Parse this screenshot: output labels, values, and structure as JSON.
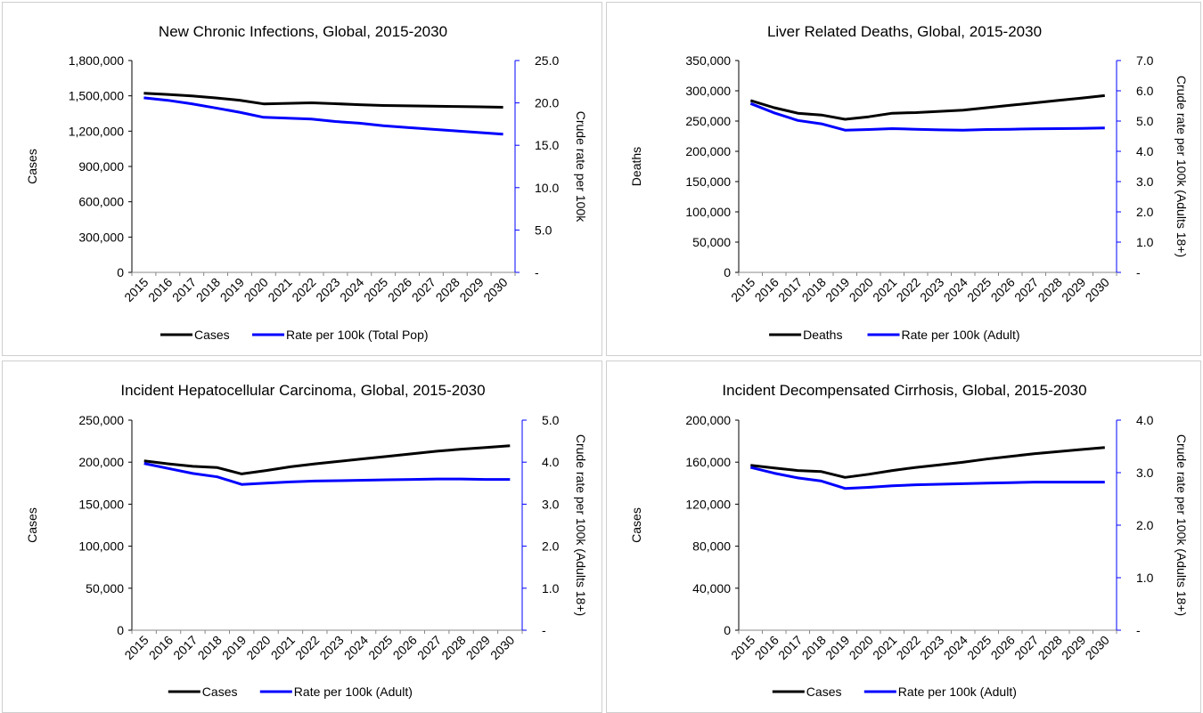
{
  "chart_data": [
    {
      "type": "line",
      "title": "New Chronic Infections, Global, 2015-2030",
      "ylabel": "Cases",
      "y2label": "Crude rate per 100k",
      "ylim": [
        0,
        1800000
      ],
      "y2lim": [
        0,
        25
      ],
      "yticks": [
        "0",
        "300,000",
        "600,000",
        "900,000",
        "1,200,000",
        "1,500,000",
        "1,800,000"
      ],
      "y2ticks": [
        "-",
        "5.0",
        "10.0",
        "15.0",
        "20.0",
        "25.0"
      ],
      "categories": [
        "2015",
        "2016",
        "2017",
        "2018",
        "2019",
        "2020",
        "2021",
        "2022",
        "2023",
        "2024",
        "2025",
        "2026",
        "2027",
        "2028",
        "2029",
        "2030"
      ],
      "series": [
        {
          "name": "Cases",
          "axis": "left",
          "color": "#000000",
          "values": [
            1522000,
            1512000,
            1500000,
            1482000,
            1463000,
            1432000,
            1436000,
            1441000,
            1433000,
            1425000,
            1418000,
            1415000,
            1412000,
            1410000,
            1407000,
            1403000
          ]
        },
        {
          "name": "Rate per 100k (Total Pop)",
          "axis": "right",
          "color": "#0000FF",
          "values": [
            20.6,
            20.3,
            19.9,
            19.4,
            18.9,
            18.3,
            18.2,
            18.1,
            17.8,
            17.6,
            17.3,
            17.1,
            16.9,
            16.7,
            16.5,
            16.3
          ]
        }
      ],
      "legend": "bottom"
    },
    {
      "type": "line",
      "title": "Liver Related Deaths, Global, 2015-2030",
      "ylabel": "Deaths",
      "y2label": "Crude rate per 100k (Adults 18+)",
      "ylim": [
        0,
        350000
      ],
      "y2lim": [
        0,
        7
      ],
      "yticks": [
        "0",
        "50,000",
        "100,000",
        "150,000",
        "200,000",
        "250,000",
        "300,000",
        "350,000"
      ],
      "y2ticks": [
        "-",
        "1.0",
        "2.0",
        "3.0",
        "4.0",
        "5.0",
        "6.0",
        "7.0"
      ],
      "categories": [
        "2015",
        "2016",
        "2017",
        "2018",
        "2019",
        "2020",
        "2021",
        "2022",
        "2023",
        "2024",
        "2025",
        "2026",
        "2027",
        "2028",
        "2029",
        "2030"
      ],
      "series": [
        {
          "name": "Deaths",
          "axis": "left",
          "color": "#000000",
          "values": [
            284000,
            272000,
            263000,
            260000,
            253000,
            257000,
            263000,
            264000,
            266000,
            268000,
            272000,
            276000,
            280000,
            284000,
            288000,
            292000
          ]
        },
        {
          "name": "Rate per 100k (Adult)",
          "axis": "right",
          "color": "#0000FF",
          "values": [
            5.58,
            5.27,
            5.02,
            4.91,
            4.7,
            4.72,
            4.75,
            4.73,
            4.71,
            4.7,
            4.72,
            4.73,
            4.74,
            4.75,
            4.76,
            4.77
          ]
        }
      ],
      "legend": "bottom"
    },
    {
      "type": "line",
      "title": "Incident Hepatocellular Carcinoma, Global, 2015-2030",
      "ylabel": "Cases",
      "y2label": "Crude rate per 100k (Adults 18+)",
      "ylim": [
        0,
        250000
      ],
      "y2lim": [
        0,
        5
      ],
      "yticks": [
        "0",
        "50,000",
        "100,000",
        "150,000",
        "200,000",
        "250,000"
      ],
      "y2ticks": [
        "-",
        "1.0",
        "2.0",
        "3.0",
        "4.0",
        "5.0"
      ],
      "categories": [
        "2015",
        "2016",
        "2017",
        "2018",
        "2019",
        "2020",
        "2021",
        "2022",
        "2023",
        "2024",
        "2025",
        "2026",
        "2027",
        "2028",
        "2029",
        "2030"
      ],
      "series": [
        {
          "name": "Cases",
          "axis": "left",
          "color": "#000000",
          "values": [
            201500,
            198000,
            195000,
            193500,
            186000,
            190000,
            194500,
            198000,
            201000,
            204000,
            207000,
            210000,
            213000,
            215500,
            217500,
            219500
          ]
        },
        {
          "name": "Rate per 100k (Adult)",
          "axis": "right",
          "color": "#0000FF",
          "values": [
            3.97,
            3.85,
            3.73,
            3.65,
            3.47,
            3.5,
            3.53,
            3.55,
            3.56,
            3.57,
            3.58,
            3.59,
            3.6,
            3.6,
            3.59,
            3.59
          ]
        }
      ],
      "legend": "bottom"
    },
    {
      "type": "line",
      "title": "Incident Decompensated Cirrhosis, Global, 2015-2030",
      "ylabel": "Cases",
      "y2label": "Crude rate per 100k (Adults 18+)",
      "ylim": [
        0,
        200000
      ],
      "y2lim": [
        0,
        4
      ],
      "yticks": [
        "0",
        "40,000",
        "80,000",
        "120,000",
        "160,000",
        "200,000"
      ],
      "y2ticks": [
        "-",
        "1.0",
        "2.0",
        "3.0",
        "4.0"
      ],
      "categories": [
        "2015",
        "2016",
        "2017",
        "2018",
        "2019",
        "2020",
        "2021",
        "2022",
        "2023",
        "2024",
        "2025",
        "2026",
        "2027",
        "2028",
        "2029",
        "2030"
      ],
      "series": [
        {
          "name": "Cases",
          "axis": "left",
          "color": "#000000",
          "values": [
            157000,
            154500,
            152000,
            151000,
            145500,
            148500,
            152000,
            155000,
            157500,
            160000,
            163000,
            165500,
            168000,
            170000,
            172000,
            174000
          ]
        },
        {
          "name": "Rate per 100k (Adult)",
          "axis": "right",
          "color": "#0000FF",
          "values": [
            3.1,
            2.99,
            2.9,
            2.84,
            2.7,
            2.72,
            2.75,
            2.77,
            2.78,
            2.79,
            2.8,
            2.81,
            2.82,
            2.82,
            2.82,
            2.82
          ]
        }
      ],
      "legend": "bottom"
    }
  ]
}
